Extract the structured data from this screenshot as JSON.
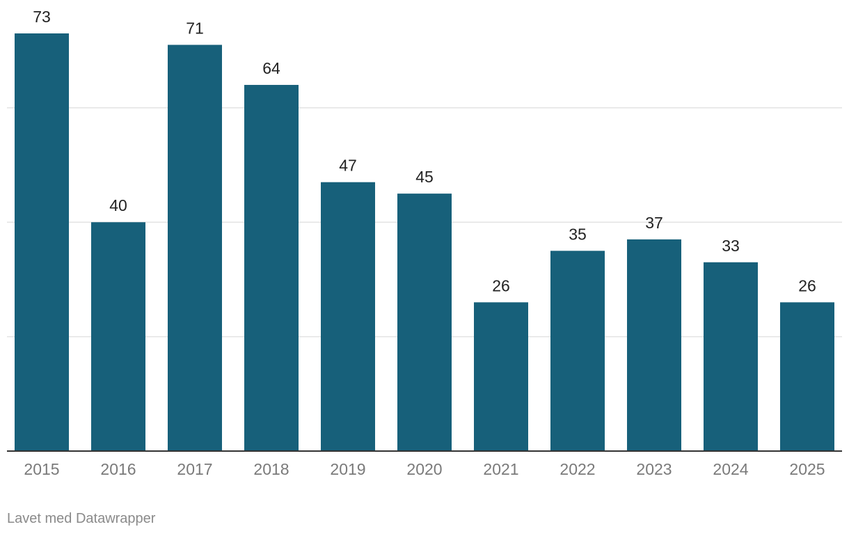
{
  "chart_data": {
    "type": "bar",
    "categories": [
      "2015",
      "2016",
      "2017",
      "2018",
      "2019",
      "2020",
      "2021",
      "2022",
      "2023",
      "2024",
      "2025"
    ],
    "values": [
      73,
      40,
      71,
      64,
      47,
      45,
      26,
      35,
      37,
      33,
      26
    ],
    "ylim": [
      0,
      80
    ],
    "gridlines": [
      20,
      40,
      60
    ],
    "grid": true,
    "legend": "none",
    "value_labels": true
  },
  "colors": {
    "bar": "#17607a",
    "gridline": "#e3e3e3",
    "baseline": "#333333"
  },
  "footer": {
    "credit": "Lavet med Datawrapper"
  }
}
